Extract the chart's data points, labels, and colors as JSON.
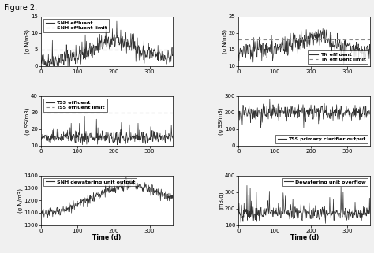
{
  "title": "Figure 2.",
  "xlim": [
    0,
    364
  ],
  "xticks": [
    0,
    100,
    200,
    300
  ],
  "time_points": 365,
  "fig_facecolor": "#f0f0f0",
  "axes_facecolor": "#ffffff",
  "subplots": [
    {
      "row": 0,
      "col": 0,
      "ylabel": "(g N/m3)",
      "ylim": [
        0,
        15
      ],
      "yticks": [
        0,
        5,
        10,
        15
      ],
      "dashed_line": 5.0,
      "legend": [
        "SNH effluent",
        "SNH effluent limit"
      ],
      "legend_loc": "upper left",
      "signal_type": "SNH_effluent"
    },
    {
      "row": 0,
      "col": 1,
      "ylabel": "(g N/m3)",
      "ylim": [
        10,
        25
      ],
      "yticks": [
        10,
        15,
        20,
        25
      ],
      "dashed_line": 18.0,
      "legend": [
        "TN effluent",
        "TN effluent limit"
      ],
      "legend_loc": "lower right",
      "signal_type": "TN_effluent"
    },
    {
      "row": 1,
      "col": 0,
      "ylabel": "(g SS/m3)",
      "ylim": [
        10,
        40
      ],
      "yticks": [
        10,
        20,
        30,
        40
      ],
      "dashed_line": 30.0,
      "legend": [
        "TSS effluent",
        "TSS effluent limit"
      ],
      "legend_loc": "upper left",
      "signal_type": "TSS_effluent"
    },
    {
      "row": 1,
      "col": 1,
      "ylabel": "(g SS/m3)",
      "ylim": [
        0,
        300
      ],
      "yticks": [
        0,
        100,
        200,
        300
      ],
      "dashed_line": null,
      "legend": [
        "TSS primary clarifier output"
      ],
      "legend_loc": "lower right",
      "signal_type": "TSS_primary"
    },
    {
      "row": 2,
      "col": 0,
      "ylabel": "(g N/m3)",
      "ylim": [
        1000,
        1400
      ],
      "yticks": [
        1000,
        1100,
        1200,
        1300,
        1400
      ],
      "dashed_line": null,
      "legend": [
        "SNH dewatering unit output"
      ],
      "legend_loc": "upper left",
      "signal_type": "SNH_dewatering",
      "xlabel": "Time (d)"
    },
    {
      "row": 2,
      "col": 1,
      "ylabel": "(m3/d)",
      "ylim": [
        100,
        400
      ],
      "yticks": [
        100,
        200,
        300,
        400
      ],
      "dashed_line": null,
      "legend": [
        "Dewatering unit overflow"
      ],
      "legend_loc": "upper right",
      "signal_type": "dewatering_overflow",
      "xlabel": "Time (d)"
    }
  ]
}
